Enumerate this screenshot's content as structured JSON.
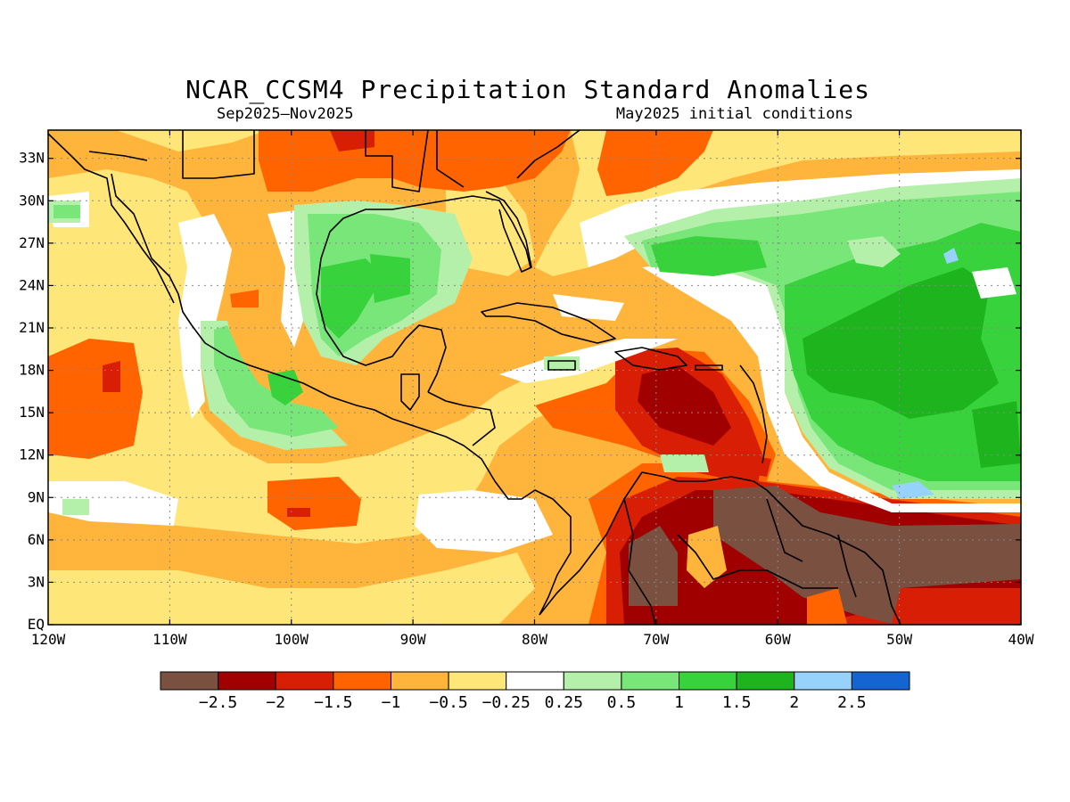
{
  "title": "NCAR_CCSM4 Precipitation Standard Anomalies",
  "period": "Sep2025–Nov2025",
  "init": "May2025 initial conditions",
  "map": {
    "lon_range": [
      -120,
      -40
    ],
    "lat_range": [
      0,
      35
    ],
    "lon_ticks": [
      {
        "v": -120,
        "t": "120W"
      },
      {
        "v": -110,
        "t": "110W"
      },
      {
        "v": -100,
        "t": "100W"
      },
      {
        "v": -90,
        "t": "90W"
      },
      {
        "v": -80,
        "t": "80W"
      },
      {
        "v": -70,
        "t": "70W"
      },
      {
        "v": -60,
        "t": "60W"
      },
      {
        "v": -50,
        "t": "50W"
      },
      {
        "v": -40,
        "t": "40W"
      }
    ],
    "lat_ticks": [
      {
        "v": 0,
        "t": "EQ"
      },
      {
        "v": 3,
        "t": "3N"
      },
      {
        "v": 6,
        "t": "6N"
      },
      {
        "v": 9,
        "t": "9N"
      },
      {
        "v": 12,
        "t": "12N"
      },
      {
        "v": 15,
        "t": "15N"
      },
      {
        "v": 18,
        "t": "18N"
      },
      {
        "v": 21,
        "t": "21N"
      },
      {
        "v": 24,
        "t": "24N"
      },
      {
        "v": 27,
        "t": "27N"
      },
      {
        "v": 30,
        "t": "30N"
      },
      {
        "v": 33,
        "t": "33N"
      }
    ],
    "gridlines": true
  },
  "colorbar": {
    "colors": [
      "#7a5040",
      "#a00000",
      "#d81e05",
      "#ff6400",
      "#ffb43c",
      "#ffe678",
      "#ffffff",
      "#b4f0aa",
      "#78e678",
      "#37d23c",
      "#1eb41e",
      "#96d2fa",
      "#1464d2"
    ],
    "labels": [
      "−2.5",
      "−2",
      "−1.5",
      "−1",
      "−0.5",
      "−0.25",
      "0.25",
      "0.5",
      "1",
      "1.5",
      "2",
      "2.5"
    ]
  }
}
